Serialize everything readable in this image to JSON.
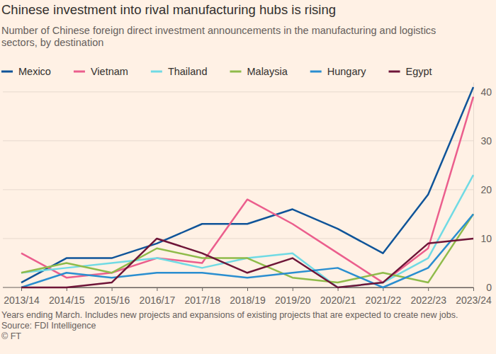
{
  "chart_data": {
    "type": "line",
    "title": "Chinese investment into rival manufacturing hubs is rising",
    "subtitle": "Number of Chinese foreign direct investment announcements in the manufacturing and logistics sectors, by destination",
    "note": "Years ending March. Includes new projects and expansions of existing projects that are expected to create new jobs.",
    "source": "Source: FDI Intelligence",
    "credit": "© FT",
    "categories": [
      "2013/14",
      "2014/15",
      "2015/16",
      "2016/17",
      "2017/18",
      "2018/19",
      "2019/20",
      "2020/21",
      "2021/22",
      "2022/23",
      "2023/24"
    ],
    "series": [
      {
        "name": "Mexico",
        "color": "#0f5499",
        "values": [
          1,
          6,
          6,
          9,
          13,
          13,
          16,
          12,
          7,
          19,
          41
        ]
      },
      {
        "name": "Vietnam",
        "color": "#eb5e8d",
        "values": [
          7,
          2,
          3,
          6,
          5,
          18,
          13,
          7,
          1,
          8,
          39
        ]
      },
      {
        "name": "Thailand",
        "color": "#70dae4",
        "values": [
          3,
          4,
          5,
          6,
          4,
          6,
          7,
          0,
          1,
          6,
          23
        ]
      },
      {
        "name": "Malaysia",
        "color": "#8fbb4a",
        "values": [
          3,
          5,
          3,
          8,
          6,
          6,
          2,
          1,
          3,
          1,
          15
        ]
      },
      {
        "name": "Hungary",
        "color": "#2a8ed0",
        "values": [
          0,
          3,
          2,
          3,
          3,
          2,
          3,
          4,
          0,
          4,
          15
        ]
      },
      {
        "name": "Egypt",
        "color": "#6e1538",
        "values": [
          0,
          0,
          1,
          10,
          7,
          3,
          6,
          0,
          1,
          9,
          10
        ]
      }
    ],
    "ylim": [
      0,
      42
    ],
    "yticks": [
      0,
      10,
      20,
      30,
      40
    ],
    "grid": true,
    "legend": "top"
  }
}
